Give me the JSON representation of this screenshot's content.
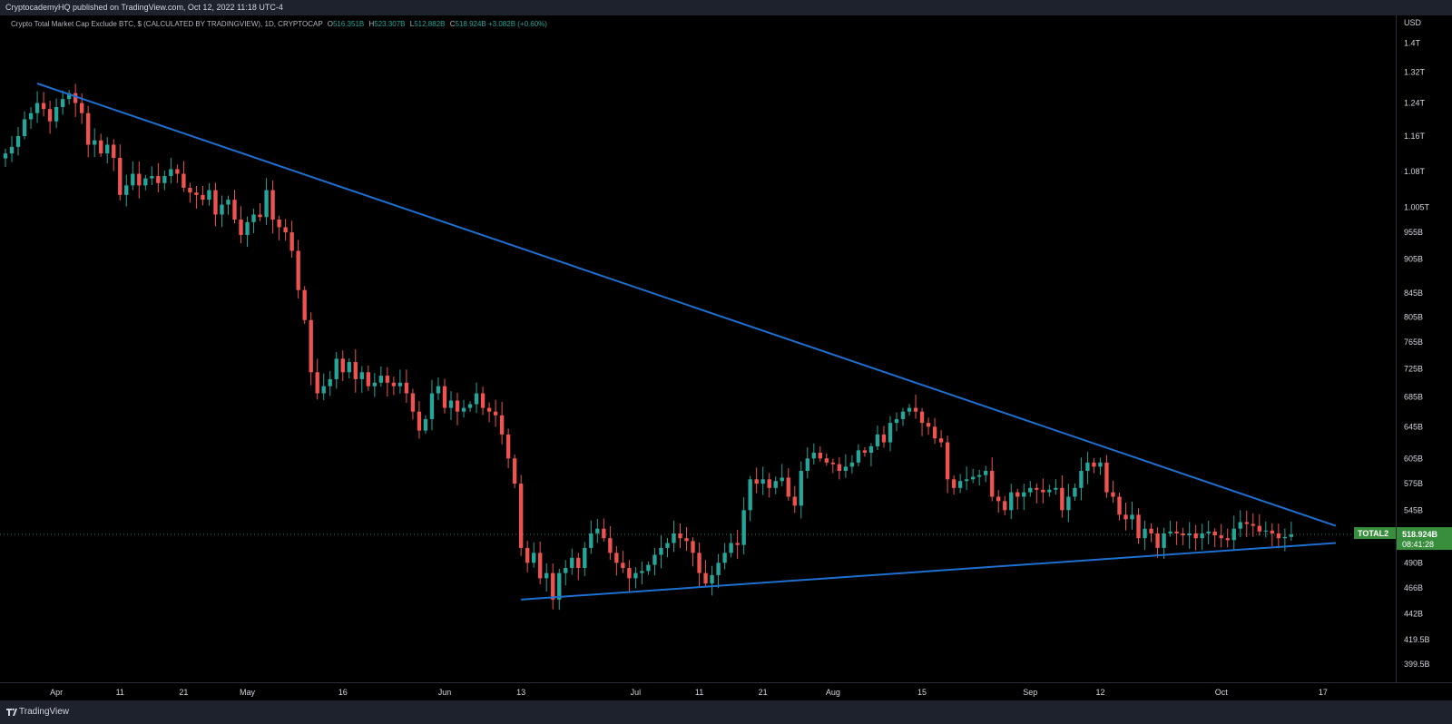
{
  "header": {
    "published_by": "CryptocademyHQ published on TradingView.com, Oct 12, 2022 11:18 UTC-4"
  },
  "legend": {
    "title": "Crypto Total Market Cap Exclude BTC, $ (CALCULATED BY TRADINGVIEW), 1D, CRYPTOCAP",
    "open_label": "O",
    "open": "516.351B",
    "high_label": "H",
    "high": "523.307B",
    "low_label": "L",
    "low": "512.882B",
    "close_label": "C",
    "close": "518.924B",
    "change": "+3.082B (+0.60%)"
  },
  "price_badge": {
    "symbol": "TOTAL2",
    "price": "518.924B",
    "countdown": "08:41:28"
  },
  "footer": {
    "brand": "TradingView"
  },
  "colors": {
    "up": "#26a69a",
    "down": "#ef5350",
    "trendline": "#1e6fcf",
    "badge": "#388e3c",
    "background": "#000000"
  },
  "chart_data": {
    "type": "candlestick",
    "symbol": "TOTAL2",
    "currency_label": "USD",
    "timeframe": "1D",
    "y_scale": "log",
    "ylim": [
      385,
      1480
    ],
    "y_ticks": [
      {
        "label": "1.4T",
        "value": 1400
      },
      {
        "label": "1.32T",
        "value": 1320
      },
      {
        "label": "1.24T",
        "value": 1240
      },
      {
        "label": "1.16T",
        "value": 1160
      },
      {
        "label": "1.08T",
        "value": 1080
      },
      {
        "label": "1.005T",
        "value": 1005
      },
      {
        "label": "955B",
        "value": 955
      },
      {
        "label": "905B",
        "value": 905
      },
      {
        "label": "845B",
        "value": 845
      },
      {
        "label": "805B",
        "value": 805
      },
      {
        "label": "765B",
        "value": 765
      },
      {
        "label": "725B",
        "value": 725
      },
      {
        "label": "685B",
        "value": 685
      },
      {
        "label": "645B",
        "value": 645
      },
      {
        "label": "605B",
        "value": 605
      },
      {
        "label": "575B",
        "value": 575
      },
      {
        "label": "545B",
        "value": 545
      },
      {
        "label": "490B",
        "value": 490
      },
      {
        "label": "466B",
        "value": 466
      },
      {
        "label": "442B",
        "value": 442
      },
      {
        "label": "419.5B",
        "value": 419.5
      },
      {
        "label": "399.5B",
        "value": 399.5
      }
    ],
    "x_start": "2022-03-24",
    "x_end": "2022-10-21",
    "x_ticks": [
      {
        "label": "Apr",
        "date": "2022-04-01"
      },
      {
        "label": "11",
        "date": "2022-04-11"
      },
      {
        "label": "21",
        "date": "2022-04-21"
      },
      {
        "label": "May",
        "date": "2022-05-01"
      },
      {
        "label": "16",
        "date": "2022-05-16"
      },
      {
        "label": "Jun",
        "date": "2022-06-01"
      },
      {
        "label": "13",
        "date": "2022-06-13"
      },
      {
        "label": "Jul",
        "date": "2022-07-01"
      },
      {
        "label": "11",
        "date": "2022-07-11"
      },
      {
        "label": "21",
        "date": "2022-07-21"
      },
      {
        "label": "Aug",
        "date": "2022-08-01"
      },
      {
        "label": "15",
        "date": "2022-08-15"
      },
      {
        "label": "Sep",
        "date": "2022-09-01"
      },
      {
        "label": "12",
        "date": "2022-09-12"
      },
      {
        "label": "Oct",
        "date": "2022-10-01"
      },
      {
        "label": "17",
        "date": "2022-10-17"
      }
    ],
    "close_series": [
      [
        "2022-03-24",
        1120
      ],
      [
        "2022-03-25",
        1135
      ],
      [
        "2022-03-26",
        1160
      ],
      [
        "2022-03-27",
        1200
      ],
      [
        "2022-03-28",
        1215
      ],
      [
        "2022-03-29",
        1240
      ],
      [
        "2022-03-30",
        1225
      ],
      [
        "2022-03-31",
        1195
      ],
      [
        "2022-04-01",
        1230
      ],
      [
        "2022-04-02",
        1250
      ],
      [
        "2022-04-03",
        1265
      ],
      [
        "2022-04-04",
        1240
      ],
      [
        "2022-04-05",
        1215
      ],
      [
        "2022-04-06",
        1140
      ],
      [
        "2022-04-07",
        1150
      ],
      [
        "2022-04-08",
        1120
      ],
      [
        "2022-04-09",
        1140
      ],
      [
        "2022-04-10",
        1110
      ],
      [
        "2022-04-11",
        1030
      ],
      [
        "2022-04-12",
        1050
      ],
      [
        "2022-04-13",
        1075
      ],
      [
        "2022-04-14",
        1050
      ],
      [
        "2022-04-15",
        1065
      ],
      [
        "2022-04-16",
        1070
      ],
      [
        "2022-04-17",
        1055
      ],
      [
        "2022-04-18",
        1070
      ],
      [
        "2022-04-19",
        1085
      ],
      [
        "2022-04-20",
        1075
      ],
      [
        "2022-04-21",
        1045
      ],
      [
        "2022-04-22",
        1035
      ],
      [
        "2022-04-23",
        1030
      ],
      [
        "2022-04-24",
        1020
      ],
      [
        "2022-04-25",
        1040
      ],
      [
        "2022-04-26",
        990
      ],
      [
        "2022-04-27",
        1010
      ],
      [
        "2022-04-28",
        1020
      ],
      [
        "2022-04-29",
        980
      ],
      [
        "2022-04-30",
        950
      ],
      [
        "2022-05-01",
        975
      ],
      [
        "2022-05-02",
        990
      ],
      [
        "2022-05-03",
        985
      ],
      [
        "2022-05-04",
        1040
      ],
      [
        "2022-05-05",
        980
      ],
      [
        "2022-05-06",
        965
      ],
      [
        "2022-05-07",
        955
      ],
      [
        "2022-05-08",
        920
      ],
      [
        "2022-05-09",
        850
      ],
      [
        "2022-05-10",
        800
      ],
      [
        "2022-05-11",
        720
      ],
      [
        "2022-05-12",
        690
      ],
      [
        "2022-05-13",
        700
      ],
      [
        "2022-05-14",
        710
      ],
      [
        "2022-05-15",
        740
      ],
      [
        "2022-05-16",
        720
      ],
      [
        "2022-05-17",
        735
      ],
      [
        "2022-05-18",
        710
      ],
      [
        "2022-05-19",
        720
      ],
      [
        "2022-05-20",
        700
      ],
      [
        "2022-05-21",
        705
      ],
      [
        "2022-05-22",
        715
      ],
      [
        "2022-05-23",
        705
      ],
      [
        "2022-05-24",
        700
      ],
      [
        "2022-05-25",
        705
      ],
      [
        "2022-05-26",
        690
      ],
      [
        "2022-05-27",
        665
      ],
      [
        "2022-05-28",
        640
      ],
      [
        "2022-05-29",
        655
      ],
      [
        "2022-05-30",
        690
      ],
      [
        "2022-05-31",
        700
      ],
      [
        "2022-06-01",
        670
      ],
      [
        "2022-06-02",
        680
      ],
      [
        "2022-06-03",
        665
      ],
      [
        "2022-06-04",
        670
      ],
      [
        "2022-06-05",
        675
      ],
      [
        "2022-06-06",
        690
      ],
      [
        "2022-06-07",
        670
      ],
      [
        "2022-06-08",
        665
      ],
      [
        "2022-06-09",
        660
      ],
      [
        "2022-06-10",
        635
      ],
      [
        "2022-06-11",
        605
      ],
      [
        "2022-06-12",
        575
      ],
      [
        "2022-06-13",
        505
      ],
      [
        "2022-06-14",
        490
      ],
      [
        "2022-06-15",
        500
      ],
      [
        "2022-06-16",
        475
      ],
      [
        "2022-06-17",
        480
      ],
      [
        "2022-06-18",
        455
      ],
      [
        "2022-06-19",
        480
      ],
      [
        "2022-06-20",
        485
      ],
      [
        "2022-06-21",
        495
      ],
      [
        "2022-06-22",
        485
      ],
      [
        "2022-06-23",
        505
      ],
      [
        "2022-06-24",
        520
      ],
      [
        "2022-06-25",
        525
      ],
      [
        "2022-06-26",
        515
      ],
      [
        "2022-06-27",
        500
      ],
      [
        "2022-06-28",
        490
      ],
      [
        "2022-06-29",
        485
      ],
      [
        "2022-06-30",
        475
      ],
      [
        "2022-07-01",
        480
      ],
      [
        "2022-07-02",
        482
      ],
      [
        "2022-07-03",
        488
      ],
      [
        "2022-07-04",
        498
      ],
      [
        "2022-07-05",
        505
      ],
      [
        "2022-07-06",
        510
      ],
      [
        "2022-07-07",
        520
      ],
      [
        "2022-07-08",
        515
      ],
      [
        "2022-07-09",
        512
      ],
      [
        "2022-07-10",
        500
      ],
      [
        "2022-07-11",
        480
      ],
      [
        "2022-07-12",
        470
      ],
      [
        "2022-07-13",
        478
      ],
      [
        "2022-07-14",
        490
      ],
      [
        "2022-07-15",
        500
      ],
      [
        "2022-07-16",
        510
      ],
      [
        "2022-07-17",
        508
      ],
      [
        "2022-07-18",
        545
      ],
      [
        "2022-07-19",
        580
      ],
      [
        "2022-07-20",
        575
      ],
      [
        "2022-07-21",
        580
      ],
      [
        "2022-07-22",
        570
      ],
      [
        "2022-07-23",
        578
      ],
      [
        "2022-07-24",
        582
      ],
      [
        "2022-07-25",
        560
      ],
      [
        "2022-07-26",
        550
      ],
      [
        "2022-07-27",
        590
      ],
      [
        "2022-07-28",
        605
      ],
      [
        "2022-07-29",
        612
      ],
      [
        "2022-07-30",
        605
      ],
      [
        "2022-07-31",
        600
      ],
      [
        "2022-08-01",
        598
      ],
      [
        "2022-08-02",
        590
      ],
      [
        "2022-08-03",
        595
      ],
      [
        "2022-08-04",
        600
      ],
      [
        "2022-08-05",
        615
      ],
      [
        "2022-08-06",
        612
      ],
      [
        "2022-08-07",
        620
      ],
      [
        "2022-08-08",
        635
      ],
      [
        "2022-08-09",
        625
      ],
      [
        "2022-08-10",
        650
      ],
      [
        "2022-08-11",
        655
      ],
      [
        "2022-08-12",
        665
      ],
      [
        "2022-08-13",
        670
      ],
      [
        "2022-08-14",
        665
      ],
      [
        "2022-08-15",
        650
      ],
      [
        "2022-08-16",
        645
      ],
      [
        "2022-08-17",
        630
      ],
      [
        "2022-08-18",
        625
      ],
      [
        "2022-08-19",
        580
      ],
      [
        "2022-08-20",
        570
      ],
      [
        "2022-08-21",
        578
      ],
      [
        "2022-08-22",
        580
      ],
      [
        "2022-08-23",
        583
      ],
      [
        "2022-08-24",
        585
      ],
      [
        "2022-08-25",
        590
      ],
      [
        "2022-08-26",
        560
      ],
      [
        "2022-08-27",
        555
      ],
      [
        "2022-08-28",
        545
      ],
      [
        "2022-08-29",
        565
      ],
      [
        "2022-08-30",
        560
      ],
      [
        "2022-08-31",
        565
      ],
      [
        "2022-09-01",
        570
      ],
      [
        "2022-09-02",
        568
      ],
      [
        "2022-09-03",
        565
      ],
      [
        "2022-09-04",
        568
      ],
      [
        "2022-09-05",
        570
      ],
      [
        "2022-09-06",
        545
      ],
      [
        "2022-09-07",
        560
      ],
      [
        "2022-09-08",
        570
      ],
      [
        "2022-09-09",
        590
      ],
      [
        "2022-09-10",
        600
      ],
      [
        "2022-09-11",
        595
      ],
      [
        "2022-09-12",
        600
      ],
      [
        "2022-09-13",
        565
      ],
      [
        "2022-09-14",
        560
      ],
      [
        "2022-09-15",
        540
      ],
      [
        "2022-09-16",
        535
      ],
      [
        "2022-09-17",
        540
      ],
      [
        "2022-09-18",
        515
      ],
      [
        "2022-09-19",
        525
      ],
      [
        "2022-09-20",
        520
      ],
      [
        "2022-09-21",
        505
      ],
      [
        "2022-09-22",
        520
      ],
      [
        "2022-09-23",
        522
      ],
      [
        "2022-09-24",
        520
      ],
      [
        "2022-09-25",
        518
      ],
      [
        "2022-09-26",
        520
      ],
      [
        "2022-09-27",
        515
      ],
      [
        "2022-09-28",
        520
      ],
      [
        "2022-09-29",
        522
      ],
      [
        "2022-09-30",
        518
      ],
      [
        "2022-10-01",
        515
      ],
      [
        "2022-10-02",
        513
      ],
      [
        "2022-10-03",
        525
      ],
      [
        "2022-10-04",
        532
      ],
      [
        "2022-10-05",
        530
      ],
      [
        "2022-10-06",
        528
      ],
      [
        "2022-10-07",
        522
      ],
      [
        "2022-10-08",
        523
      ],
      [
        "2022-10-09",
        520
      ],
      [
        "2022-10-10",
        515
      ],
      [
        "2022-10-11",
        516.351
      ],
      [
        "2022-10-12",
        518.924
      ]
    ],
    "annotations": [
      {
        "type": "trendline",
        "label": "descending resistance",
        "from": [
          "2022-03-29",
          1290
        ],
        "to": [
          "2022-10-19",
          528
        ]
      },
      {
        "type": "trendline",
        "label": "ascending support",
        "from": [
          "2022-06-13",
          455
        ],
        "to": [
          "2022-10-19",
          510
        ]
      }
    ],
    "last_price_line": 518.924
  }
}
